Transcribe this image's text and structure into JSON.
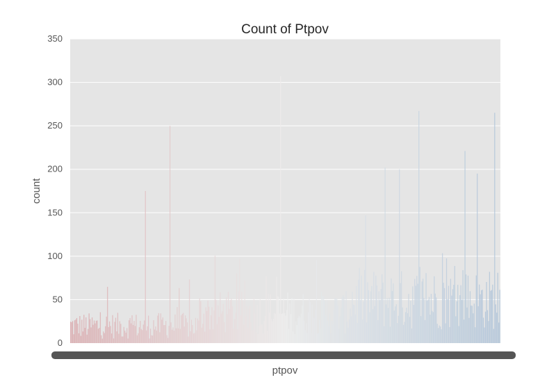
{
  "chart_data": {
    "type": "bar",
    "title": "Count of Ptpov",
    "xlabel": "ptpov",
    "ylabel": "count",
    "ylim": [
      0,
      350
    ],
    "yticks": [
      0,
      50,
      100,
      150,
      200,
      250,
      300,
      350
    ],
    "grid": true,
    "bar_count": 420,
    "peaks": [
      {
        "position": 0.173,
        "value": 175
      },
      {
        "position": 0.231,
        "value": 250
      },
      {
        "position": 0.488,
        "value": 307
      },
      {
        "position": 0.81,
        "value": 267
      },
      {
        "position": 0.946,
        "value": 195
      },
      {
        "position": 0.985,
        "value": 265
      },
      {
        "position": 0.731,
        "value": 202
      },
      {
        "position": 0.765,
        "value": 200
      },
      {
        "position": 0.917,
        "value": 221
      }
    ],
    "palette": {
      "background": "#e5e5e5",
      "grid": "#ffffff",
      "low": "#d9a8ac",
      "mid": "#eeeeee",
      "high": "#aec3d8",
      "tick_label_fill": "#555555"
    }
  }
}
